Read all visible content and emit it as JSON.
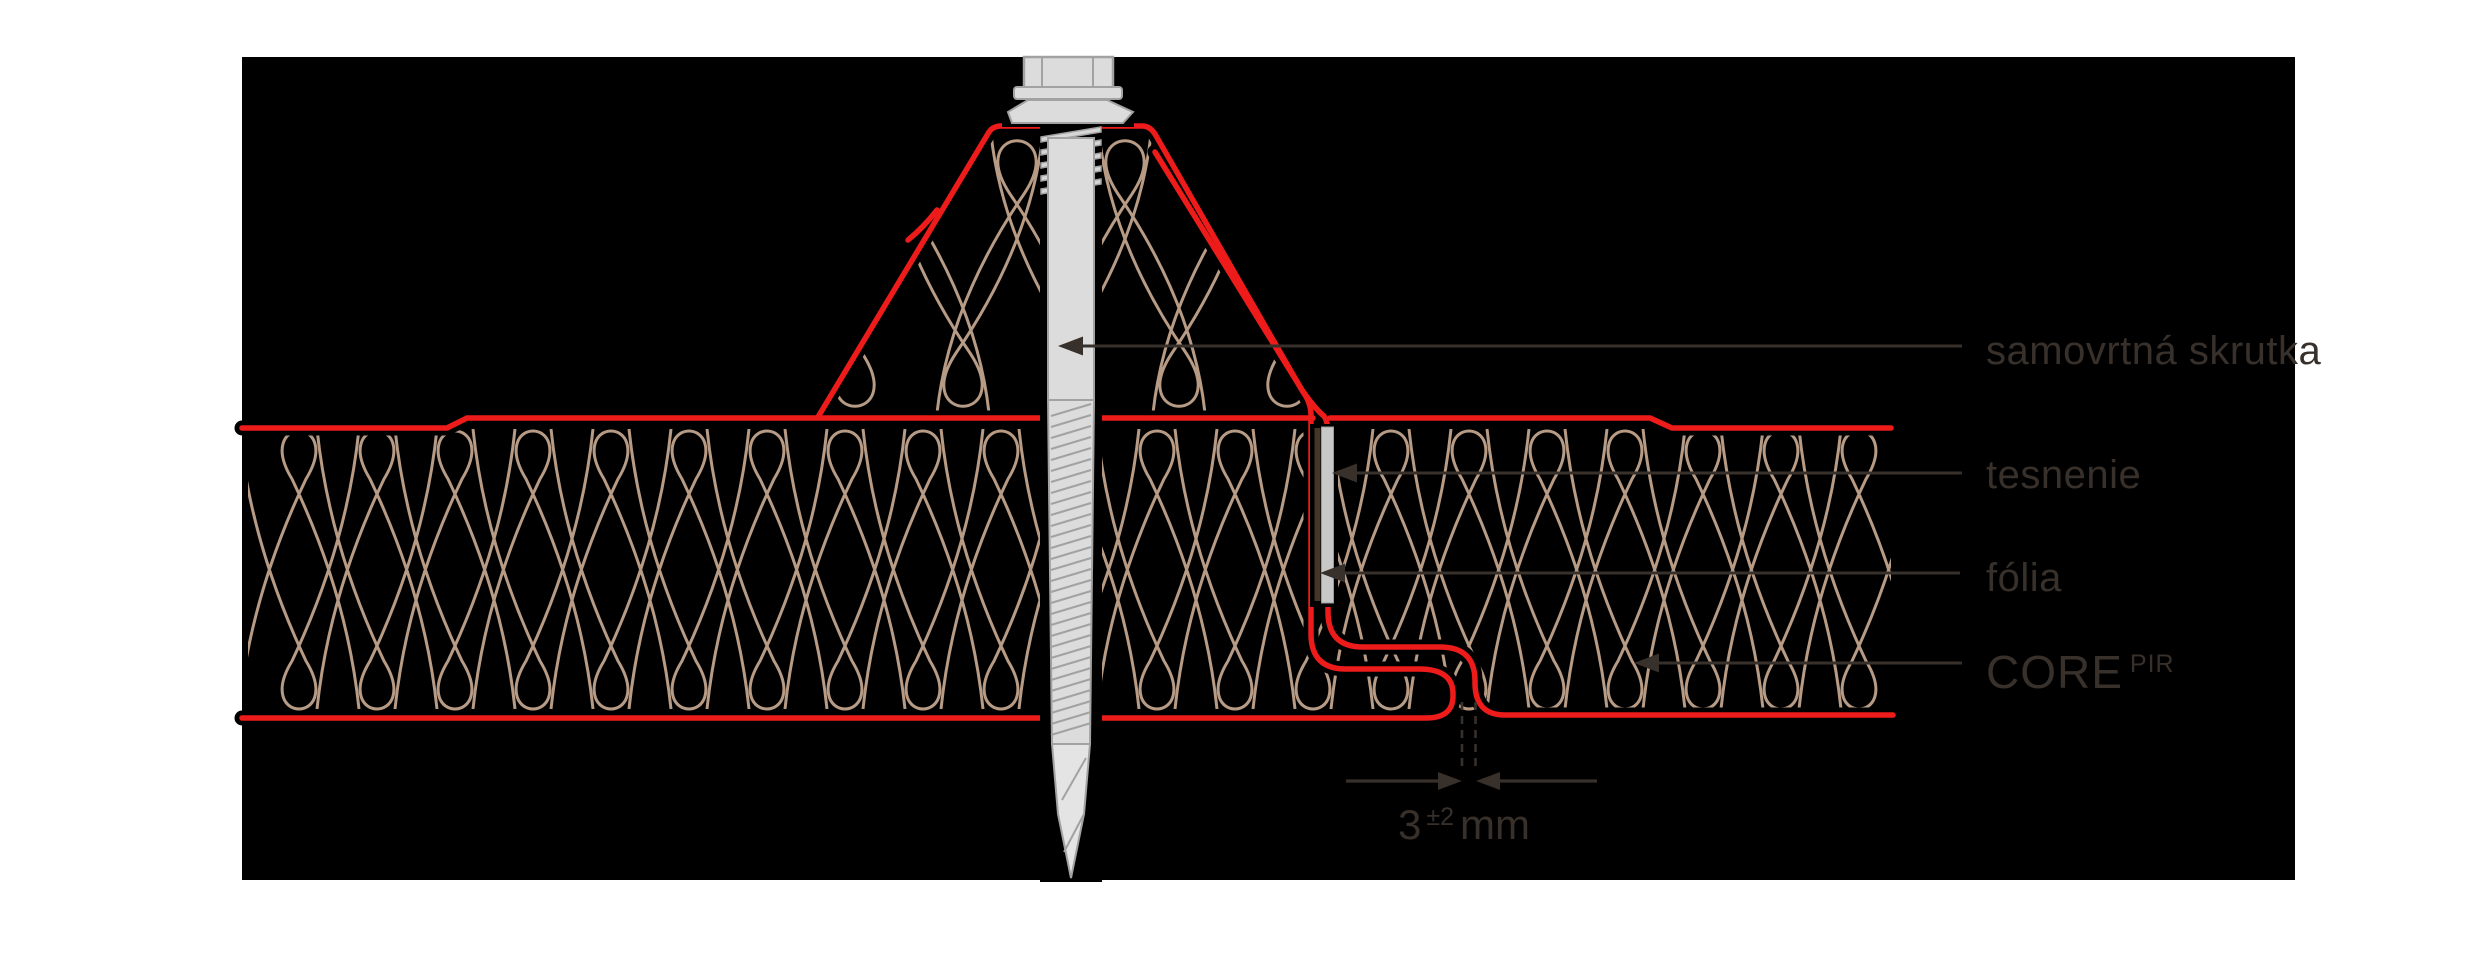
{
  "diagram": {
    "description_note": "sandwich panel side-lap joint cross-section with self-drilling screw",
    "colors": {
      "page_background": "#ffffff",
      "panel_background": "#000000",
      "sheet_red": "#ee1b1b",
      "insulation_tan": "#b79b85",
      "annotation_dark": "#38302a",
      "screw_fill": "#dcdcdc",
      "screw_fill_light": "#e4e4e4",
      "screw_outline": "#a2a2a2",
      "thread_fill": "#d6d6d6",
      "foil_gray": "#c8c8c8",
      "foil_edge": "#9b9b9b",
      "seal_dark": "#453628"
    },
    "labels": {
      "screw": "samovrtná skrutka",
      "seal": "tesnenie",
      "foil": "fólia",
      "core": "CORE",
      "core_sup": "PIR"
    },
    "dimension": {
      "value": "3",
      "tolerance": "±2",
      "unit": "mm"
    }
  }
}
